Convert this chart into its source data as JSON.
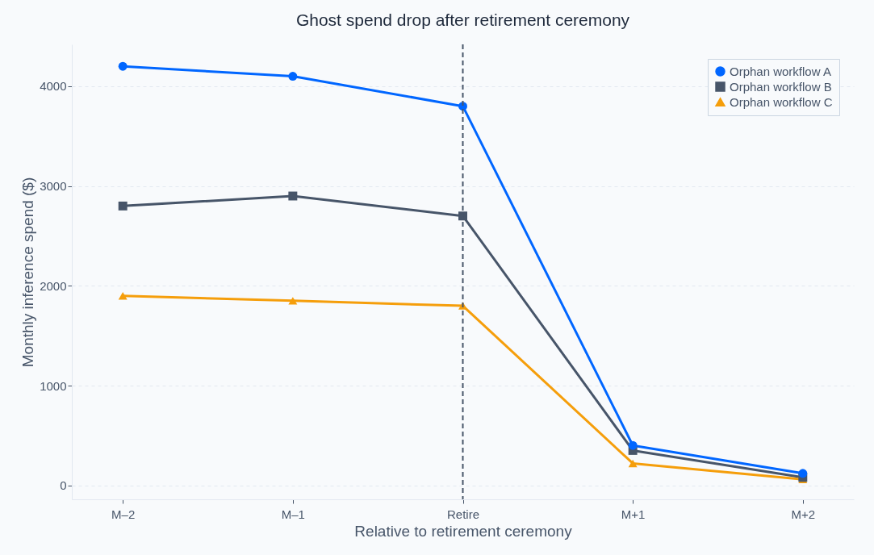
{
  "chart_data": {
    "type": "line",
    "title": "Ghost spend drop after retirement ceremony",
    "xlabel": "Relative to retirement ceremony",
    "ylabel": "Monthly inference spend ($)",
    "categories": [
      "M–2",
      "M–1",
      "Retire",
      "M+1",
      "M+2"
    ],
    "series": [
      {
        "name": "Orphan workflow A",
        "color": "#0066ff",
        "marker": "circle",
        "values": [
          4200,
          4100,
          3800,
          400,
          120
        ]
      },
      {
        "name": "Orphan workflow B",
        "color": "#475569",
        "marker": "square",
        "values": [
          2800,
          2900,
          2700,
          350,
          80
        ]
      },
      {
        "name": "Orphan workflow C",
        "color": "#f59e0b",
        "marker": "triangle",
        "values": [
          1900,
          1850,
          1800,
          220,
          60
        ]
      }
    ],
    "ylim": [
      -140,
      4420
    ],
    "yticks": [
      0,
      1000,
      2000,
      3000,
      4000
    ],
    "grid": "y",
    "legend": "top right",
    "line_style": "solid",
    "ref_lines": [
      {
        "axis": "x",
        "value": "Retire",
        "color": "#475569",
        "line_style": "dashed"
      }
    ]
  }
}
